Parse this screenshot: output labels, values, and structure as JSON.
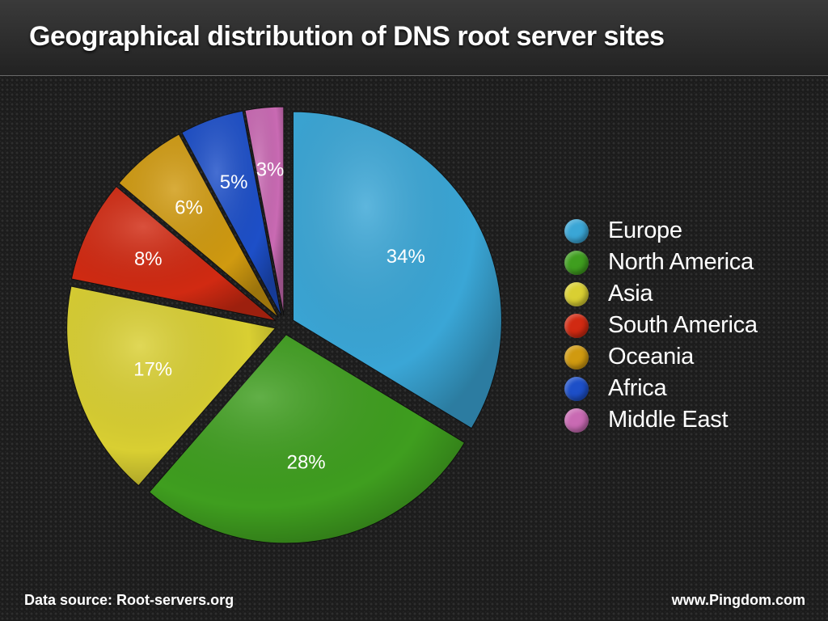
{
  "title": "Geographical distribution of DNS root server sites",
  "footer": {
    "source": "Data source: Root-servers.org",
    "site": "www.Pingdom.com"
  },
  "chart_data": {
    "type": "pie",
    "categories": [
      "Europe",
      "North America",
      "Asia",
      "South America",
      "Oceania",
      "Africa",
      "Middle East"
    ],
    "values": [
      34,
      28,
      17,
      8,
      6,
      5,
      3
    ],
    "labels": [
      "34%",
      "28%",
      "17%",
      "8%",
      "6%",
      "5%",
      "3%"
    ],
    "colors": [
      "#3aa6d6",
      "#3f9e1f",
      "#d9cf32",
      "#d12a12",
      "#d09a10",
      "#1d4fc8",
      "#c96ab3"
    ],
    "legend_position": "right",
    "exploded": true
  }
}
